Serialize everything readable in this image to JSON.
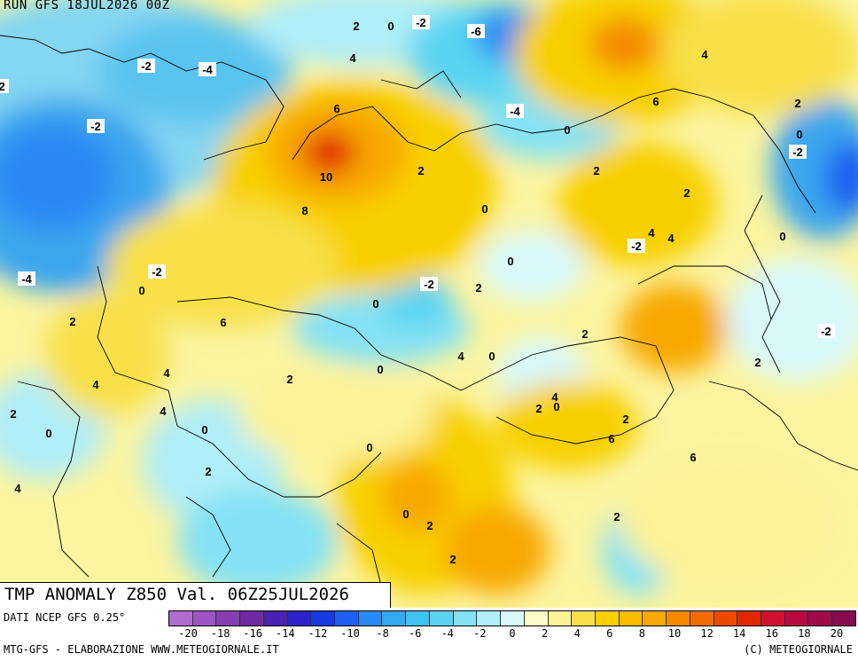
{
  "run": "RUN GFS 18JUL2026 00Z",
  "title": "TMP ANOMALY Z850 Val. 06Z25JUL2026",
  "source": "DATI NCEP GFS 0.25°",
  "credit": "MTG-GFS - ELABORAZIONE WWW.METEOGIORNALE.IT",
  "copyright": "(C) METEOGIORNALE",
  "legend": {
    "colors": [
      "#b06cd0",
      "#9a56c2",
      "#8440b0",
      "#6e2aa0",
      "#4a22b0",
      "#2c24c8",
      "#1838e0",
      "#1e60f0",
      "#2a88f4",
      "#34a8f0",
      "#40c2f0",
      "#5ad4f2",
      "#84e2f4",
      "#b0eef8",
      "#d8f8fa",
      "#fbfbc8",
      "#fcf296",
      "#f8e04a",
      "#f8d000",
      "#f8bc00",
      "#f8a800",
      "#f48a00",
      "#f06c00",
      "#ec4a00",
      "#e02800",
      "#d01030",
      "#b80a40",
      "#a00a48",
      "#880a50"
    ],
    "ticks": [
      "-20",
      "-18",
      "-16",
      "-14",
      "-12",
      "-10",
      "-8",
      "-6",
      "-4",
      "-2",
      "0",
      "2",
      "4",
      "6",
      "8",
      "10",
      "12",
      "14",
      "16",
      "18",
      "20"
    ]
  },
  "map_labels": [
    "2",
    "0",
    "-2",
    "-6",
    "4",
    "-2",
    "-4",
    "-2",
    "6",
    "-4",
    "-2",
    "0",
    "6",
    "2",
    "0",
    "-2",
    "4",
    "2",
    "10",
    "2",
    "8",
    "0",
    "-2",
    "2",
    "0",
    "-4",
    "0",
    "-2",
    "2",
    "4",
    "4",
    "0",
    "-2",
    "-2",
    "2",
    "6",
    "0",
    "4",
    "4",
    "2",
    "0",
    "4",
    "2",
    "0",
    "2",
    "4",
    "0",
    "2",
    "4",
    "2",
    "0",
    "0",
    "2",
    "0",
    "6",
    "2",
    "6",
    "4",
    "0",
    "2",
    "2",
    "2"
  ]
}
